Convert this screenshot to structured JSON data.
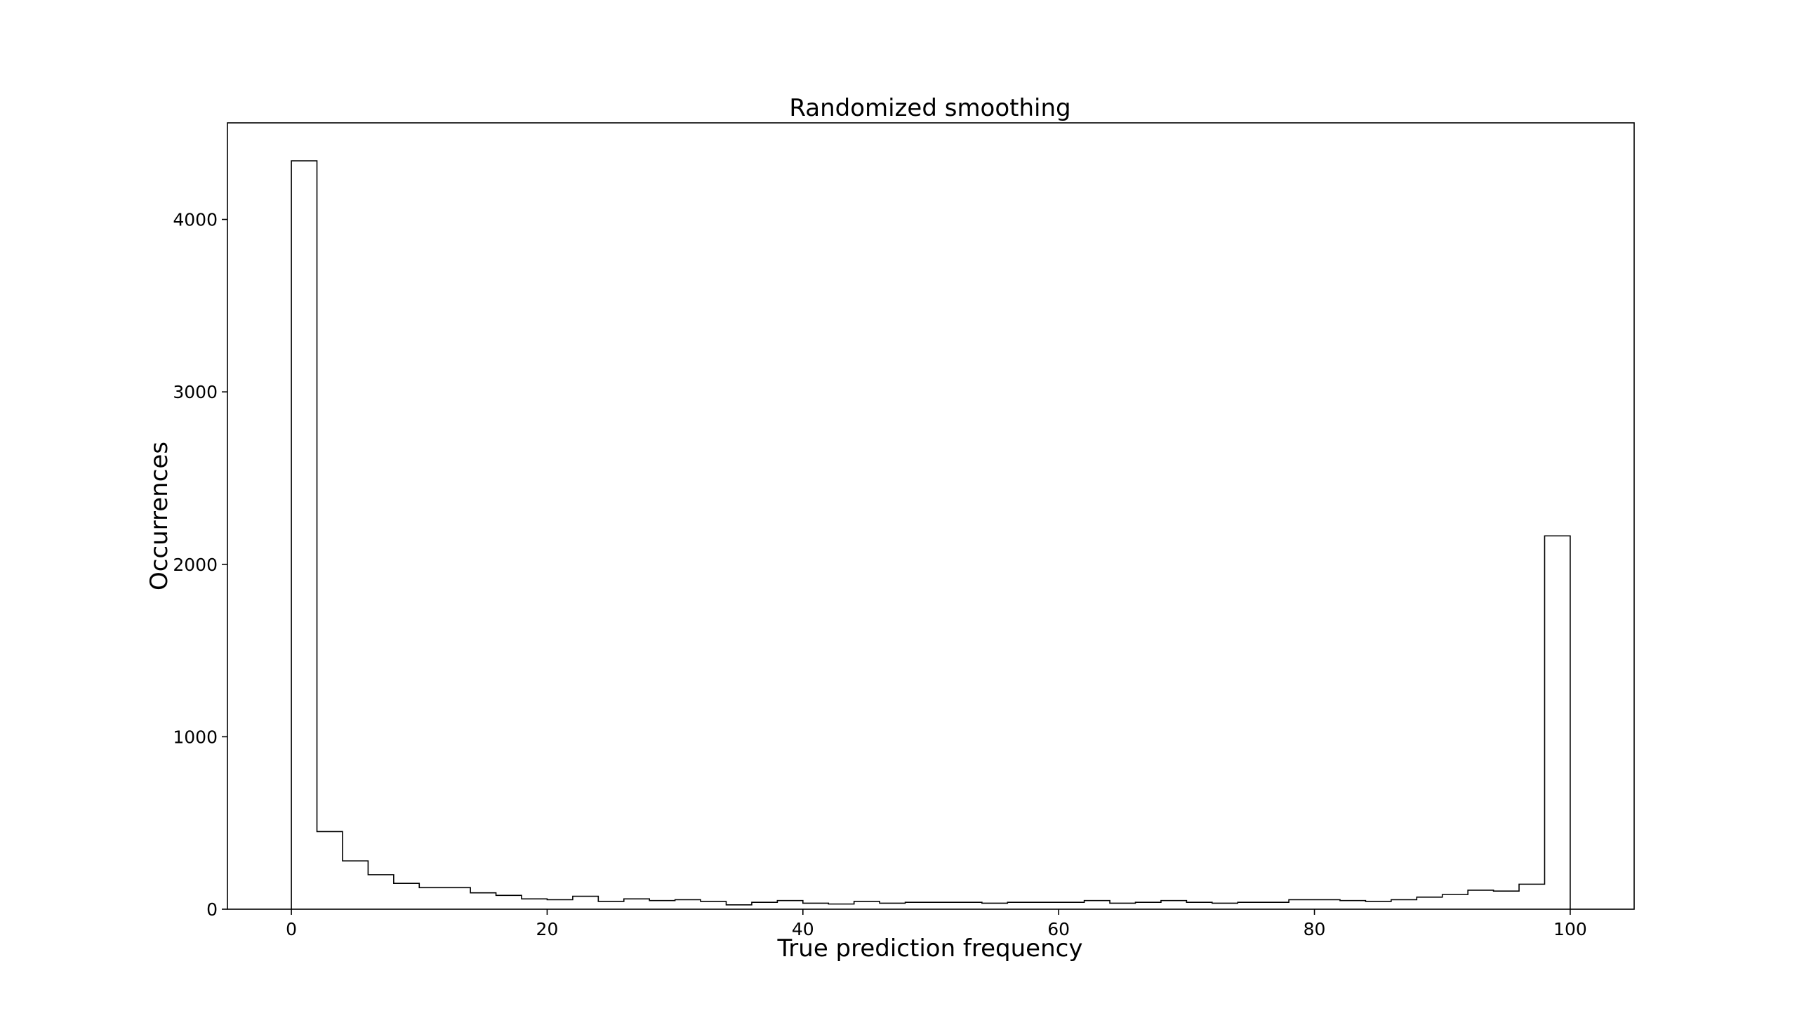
{
  "chart_data": {
    "type": "bar",
    "title": "Randomized smoothing",
    "xlabel": "True prediction frequency",
    "ylabel": "Occurrences",
    "histtype": "step",
    "bar_outline_color": "#000000",
    "bar_fill": "none",
    "xlim": [
      -5,
      105
    ],
    "ylim": [
      0,
      4560
    ],
    "xticks": [
      0,
      20,
      40,
      60,
      80,
      100
    ],
    "xtick_labels": [
      "0",
      "20",
      "40",
      "60",
      "80",
      "100"
    ],
    "yticks": [
      0,
      1000,
      2000,
      3000,
      4000
    ],
    "ytick_labels": [
      "0",
      "1000",
      "2000",
      "3000",
      "4000"
    ],
    "grid": false,
    "legend": "none",
    "bin_edges": [
      0,
      2,
      4,
      6,
      8,
      10,
      12,
      14,
      16,
      18,
      20,
      22,
      24,
      26,
      28,
      30,
      32,
      34,
      36,
      38,
      40,
      42,
      44,
      46,
      48,
      50,
      52,
      54,
      56,
      58,
      60,
      62,
      64,
      66,
      68,
      70,
      72,
      74,
      76,
      78,
      80,
      82,
      84,
      86,
      88,
      90,
      92,
      94,
      96,
      98,
      100
    ],
    "values": [
      4340,
      450,
      280,
      200,
      150,
      125,
      125,
      95,
      80,
      60,
      55,
      75,
      45,
      60,
      50,
      55,
      45,
      25,
      40,
      50,
      35,
      30,
      45,
      35,
      40,
      40,
      40,
      35,
      40,
      40,
      40,
      50,
      35,
      40,
      50,
      40,
      35,
      40,
      40,
      55,
      55,
      50,
      45,
      55,
      70,
      85,
      110,
      105,
      145,
      2165
    ]
  }
}
